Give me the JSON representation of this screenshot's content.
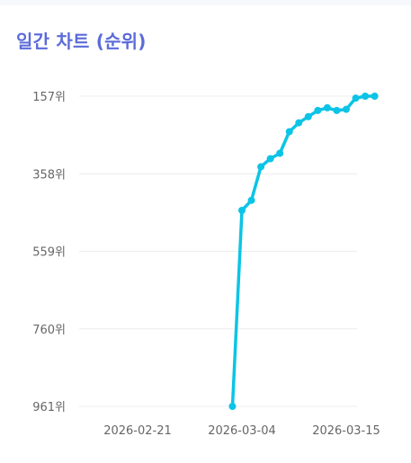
{
  "header": {
    "title": "일간 차트 (순위)"
  },
  "chart_data": {
    "type": "line",
    "title": "일간 차트 (순위)",
    "xlabel": "",
    "ylabel": "",
    "y_inverted": true,
    "ylim": [
      961,
      157
    ],
    "y_ticks": [
      157,
      358,
      559,
      760,
      961
    ],
    "y_tick_labels": [
      "157위",
      "358위",
      "559위",
      "760위",
      "961위"
    ],
    "x_tick_labels": [
      "2026-02-21",
      "2026-03-04",
      "2026-03-15"
    ],
    "grid": true,
    "legend": "none",
    "line_color": "#0cc4e6",
    "x": [
      "2026-03-03",
      "2026-03-04",
      "2026-03-05",
      "2026-03-06",
      "2026-03-07",
      "2026-03-08",
      "2026-03-09",
      "2026-03-10",
      "2026-03-11",
      "2026-03-12",
      "2026-03-13",
      "2026-03-14",
      "2026-03-15",
      "2026-03-16",
      "2026-03-17",
      "2026-03-18"
    ],
    "series": [
      {
        "values": [
          961,
          453,
          427,
          340,
          319,
          305,
          249,
          226,
          210,
          194,
          187,
          194,
          191,
          162,
          157,
          157
        ]
      }
    ]
  }
}
